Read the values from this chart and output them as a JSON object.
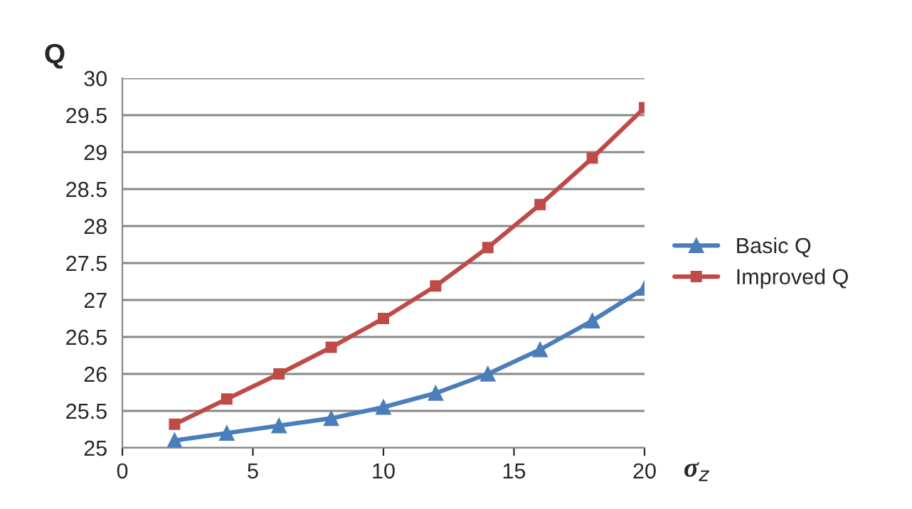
{
  "chart_data": {
    "type": "line",
    "xlabel": "σ$_{z}$",
    "ylabel": "Q",
    "x": [
      2,
      4,
      6,
      8,
      10,
      12,
      14,
      16,
      18,
      20
    ],
    "series": [
      {
        "name": "Basic Q",
        "color": "#4a7ebb",
        "marker": "triangle",
        "values": [
          25.1,
          25.2,
          25.3,
          25.4,
          25.55,
          25.74,
          26.0,
          26.33,
          26.72,
          27.16
        ]
      },
      {
        "name": "Improved Q",
        "color": "#be4b48",
        "marker": "square",
        "values": [
          25.32,
          25.66,
          26.0,
          26.36,
          26.75,
          27.19,
          27.71,
          28.29,
          28.92,
          29.6
        ]
      }
    ],
    "xlim": [
      0,
      20
    ],
    "xticks": [
      0,
      5,
      10,
      15,
      20
    ],
    "ylim": [
      25,
      30
    ],
    "yticks": [
      25,
      25.5,
      26,
      26.5,
      27,
      27.5,
      28,
      28.5,
      29,
      29.5,
      30
    ],
    "grid": "y",
    "legend": "right",
    "line_style": "solid"
  }
}
